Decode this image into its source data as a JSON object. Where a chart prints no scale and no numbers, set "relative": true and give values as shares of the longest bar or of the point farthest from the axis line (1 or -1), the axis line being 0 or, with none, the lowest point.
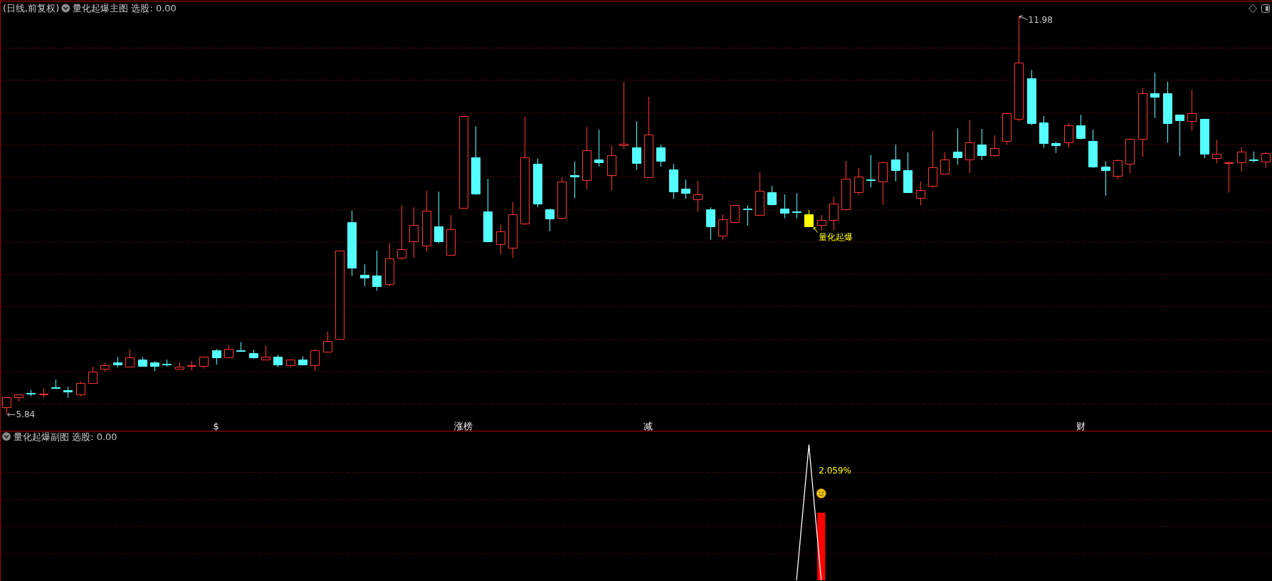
{
  "chart_data": [
    {
      "type": "candlestick",
      "title": "(日线,前复权)",
      "subtitle": "量化起爆主图 选股: 0.00",
      "categories": [
        null,
        null,
        null,
        null,
        null,
        null,
        null,
        null,
        null,
        null,
        null,
        null,
        null,
        null,
        null,
        null,
        null,
        "$",
        null,
        null,
        null,
        null,
        null,
        null,
        null,
        null,
        null,
        null,
        null,
        null,
        null,
        null,
        null,
        null,
        null,
        null,
        null,
        "涨榜",
        null,
        null,
        null,
        null,
        null,
        null,
        null,
        null,
        null,
        null,
        null,
        null,
        null,
        null,
        "减",
        null,
        null,
        null,
        null,
        null,
        null,
        null,
        null,
        null,
        null,
        null,
        null,
        null,
        null,
        null,
        null,
        null,
        null,
        null,
        null,
        null,
        null,
        null,
        null,
        null,
        null,
        null,
        null,
        null,
        null,
        null,
        null,
        null,
        null,
        "财",
        null,
        null,
        null,
        null,
        null,
        null,
        null,
        null,
        null,
        null,
        null,
        null,
        null,
        null,
        null
      ],
      "ohlc": [
        [
          5.94,
          6.1,
          5.84,
          6.1
        ],
        [
          6.1,
          6.14,
          6.03,
          6.14
        ],
        [
          6.16,
          6.21,
          6.11,
          6.15
        ],
        [
          6.15,
          6.23,
          6.09,
          6.15
        ],
        [
          6.25,
          6.37,
          6.23,
          6.24
        ],
        [
          6.21,
          6.26,
          6.09,
          6.18
        ],
        [
          6.14,
          6.34,
          6.11,
          6.32
        ],
        [
          6.32,
          6.57,
          6.32,
          6.49
        ],
        [
          6.54,
          6.63,
          6.49,
          6.59
        ],
        [
          6.63,
          6.72,
          6.56,
          6.6
        ],
        [
          6.57,
          6.84,
          6.56,
          6.71
        ],
        [
          6.68,
          6.72,
          6.58,
          6.58
        ],
        [
          6.64,
          6.65,
          6.5,
          6.58
        ],
        [
          6.61,
          6.68,
          6.57,
          6.6
        ],
        [
          6.54,
          6.63,
          6.53,
          6.57
        ],
        [
          6.59,
          6.66,
          6.51,
          6.59
        ],
        [
          6.58,
          6.72,
          6.54,
          6.72
        ],
        [
          6.82,
          6.84,
          6.6,
          6.71
        ],
        [
          6.71,
          6.9,
          6.71,
          6.84
        ],
        [
          6.82,
          6.95,
          6.8,
          6.81
        ],
        [
          6.78,
          6.83,
          6.69,
          6.71
        ],
        [
          6.68,
          6.9,
          6.68,
          6.72
        ],
        [
          6.72,
          6.75,
          6.56,
          6.6
        ],
        [
          6.59,
          6.68,
          6.56,
          6.68
        ],
        [
          6.68,
          6.73,
          6.59,
          6.6
        ],
        [
          6.59,
          6.84,
          6.51,
          6.82
        ],
        [
          6.8,
          7.11,
          6.8,
          6.97
        ],
        [
          7.0,
          8.36,
          7.0,
          8.36
        ],
        [
          8.8,
          8.98,
          7.97,
          8.1
        ],
        [
          7.99,
          8.15,
          7.81,
          7.94
        ],
        [
          7.98,
          8.36,
          7.74,
          7.81
        ],
        [
          7.84,
          8.48,
          7.81,
          8.24
        ],
        [
          8.25,
          9.06,
          8.22,
          8.38
        ],
        [
          8.5,
          9.03,
          8.25,
          8.76
        ],
        [
          8.44,
          9.29,
          8.35,
          8.98
        ],
        [
          8.74,
          9.27,
          8.48,
          8.5
        ],
        [
          8.29,
          8.91,
          8.29,
          8.69
        ],
        [
          9.02,
          10.44,
          9.02,
          10.44
        ],
        [
          9.8,
          10.28,
          9.22,
          9.24
        ],
        [
          8.97,
          9.47,
          8.49,
          8.5
        ],
        [
          8.46,
          8.76,
          8.3,
          8.66
        ],
        [
          8.41,
          9.11,
          8.25,
          8.92
        ],
        [
          8.78,
          10.43,
          8.76,
          9.8
        ],
        [
          9.7,
          9.78,
          9.03,
          9.09
        ],
        [
          9.0,
          9.01,
          8.66,
          8.86
        ],
        [
          8.87,
          9.49,
          8.84,
          9.43
        ],
        [
          9.53,
          9.74,
          9.17,
          9.5
        ],
        [
          9.45,
          10.27,
          9.31,
          9.91
        ],
        [
          9.77,
          10.23,
          9.66,
          9.72
        ],
        [
          9.53,
          9.98,
          9.29,
          9.84
        ],
        [
          9.99,
          10.97,
          9.93,
          10.01
        ],
        [
          9.96,
          10.36,
          9.61,
          9.71
        ],
        [
          9.49,
          10.74,
          9.49,
          10.15
        ],
        [
          9.96,
          10.0,
          9.66,
          9.75
        ],
        [
          9.61,
          9.7,
          9.16,
          9.27
        ],
        [
          9.32,
          9.46,
          9.16,
          9.25
        ],
        [
          9.15,
          9.44,
          8.96,
          9.23
        ],
        [
          9.0,
          9.03,
          8.53,
          8.74
        ],
        [
          8.59,
          8.92,
          8.53,
          8.84
        ],
        [
          8.8,
          9.07,
          8.8,
          9.07
        ],
        [
          9.01,
          9.06,
          8.75,
          9.0
        ],
        [
          8.91,
          9.57,
          8.91,
          9.28
        ],
        [
          9.26,
          9.36,
          9.06,
          9.08
        ],
        [
          9.01,
          9.23,
          8.86,
          8.94
        ],
        [
          8.97,
          9.25,
          8.86,
          8.96
        ],
        [
          8.92,
          8.99,
          8.74,
          8.74
        ],
        [
          8.76,
          8.91,
          8.67,
          8.83
        ],
        [
          8.83,
          9.19,
          8.67,
          9.09
        ],
        [
          9.0,
          9.75,
          8.98,
          9.47
        ],
        [
          9.26,
          9.64,
          9.22,
          9.51
        ],
        [
          9.46,
          9.84,
          9.34,
          9.45
        ],
        [
          9.43,
          9.73,
          9.07,
          9.72
        ],
        [
          9.77,
          10.0,
          9.43,
          9.6
        ],
        [
          9.6,
          9.88,
          9.25,
          9.26
        ],
        [
          9.18,
          9.43,
          9.06,
          9.3
        ],
        [
          9.36,
          10.21,
          9.33,
          9.65
        ],
        [
          9.55,
          9.88,
          9.55,
          9.77
        ],
        [
          9.89,
          10.25,
          9.69,
          9.8
        ],
        [
          9.77,
          10.38,
          9.56,
          10.03
        ],
        [
          10.0,
          10.24,
          9.76,
          9.83
        ],
        [
          9.84,
          10.14,
          9.81,
          9.95
        ],
        [
          10.05,
          10.49,
          10.0,
          10.48
        ],
        [
          10.4,
          11.98,
          10.36,
          11.26
        ],
        [
          11.02,
          11.15,
          10.3,
          10.33
        ],
        [
          10.34,
          10.44,
          9.95,
          10.02
        ],
        [
          10.02,
          10.04,
          9.87,
          9.99
        ],
        [
          10.03,
          10.33,
          9.95,
          10.3
        ],
        [
          10.3,
          10.46,
          10.08,
          10.1
        ],
        [
          10.05,
          10.23,
          9.64,
          9.66
        ],
        [
          9.66,
          9.74,
          9.21,
          9.6
        ],
        [
          9.52,
          9.77,
          9.46,
          9.76
        ],
        [
          9.7,
          10.09,
          9.56,
          10.09
        ],
        [
          10.09,
          10.87,
          9.81,
          10.79
        ],
        [
          10.79,
          11.11,
          10.41,
          10.74
        ],
        [
          10.79,
          10.97,
          10.03,
          10.33
        ],
        [
          10.46,
          10.46,
          9.82,
          10.37
        ],
        [
          10.36,
          10.85,
          10.21,
          10.48
        ],
        [
          10.4,
          10.4,
          9.79,
          9.86
        ],
        [
          9.79,
          10.07,
          9.71,
          9.86
        ],
        [
          9.73,
          9.74,
          9.26,
          9.73
        ],
        [
          9.72,
          9.96,
          9.58,
          9.89
        ],
        [
          9.77,
          9.89,
          9.72,
          9.76
        ],
        [
          9.74,
          9.88,
          9.64,
          9.87
        ]
      ],
      "colors": [
        "#ff3333",
        "#ff3333",
        "#54ffff",
        "#ff3333",
        "#54ffff",
        "#54ffff",
        "#ff3333",
        "#ff3333",
        "#ff3333",
        "#54ffff",
        "#ff3333",
        "#54ffff",
        "#54ffff",
        "#54ffff",
        "#ff3333",
        "#ff3333",
        "#ff3333",
        "#54ffff",
        "#ff3333",
        "#54ffff",
        "#54ffff",
        "#ff3333",
        "#54ffff",
        "#ff3333",
        "#54ffff",
        "#ff3333",
        "#ff3333",
        "#ff3333",
        "#54ffff",
        "#54ffff",
        "#54ffff",
        "#ff3333",
        "#ff3333",
        "#ff3333",
        "#ff3333",
        "#54ffff",
        "#ff3333",
        "#ff3333",
        "#54ffff",
        "#54ffff",
        "#ff3333",
        "#ff3333",
        "#ff3333",
        "#54ffff",
        "#54ffff",
        "#ff3333",
        "#54ffff",
        "#ff3333",
        "#54ffff",
        "#ff3333",
        "#ff3333",
        "#54ffff",
        "#ff3333",
        "#54ffff",
        "#54ffff",
        "#54ffff",
        "#ff3333",
        "#54ffff",
        "#ff3333",
        "#ff3333",
        "#54ffff",
        "#ff3333",
        "#54ffff",
        "#54ffff",
        "#54ffff",
        "#ffff00",
        "#ff3333",
        "#ff3333",
        "#ff3333",
        "#ff3333",
        "#54ffff",
        "#ff3333",
        "#54ffff",
        "#54ffff",
        "#ff3333",
        "#ff3333",
        "#ff3333",
        "#54ffff",
        "#ff3333",
        "#54ffff",
        "#ff3333",
        "#ff3333",
        "#ff3333",
        "#54ffff",
        "#54ffff",
        "#54ffff",
        "#ff3333",
        "#54ffff",
        "#54ffff",
        "#54ffff",
        "#ff3333",
        "#ff3333",
        "#ff3333",
        "#54ffff",
        "#54ffff",
        "#54ffff",
        "#ff3333",
        "#54ffff",
        "#ff3333",
        "#ff3333",
        "#ff3333",
        "#54ffff",
        "#ff3333"
      ],
      "value_labels": [
        "5.84",
        null,
        null,
        null,
        null,
        null,
        null,
        null,
        null,
        null,
        null,
        null,
        null,
        null,
        null,
        null,
        null,
        null,
        null,
        null,
        null,
        null,
        null,
        null,
        null,
        null,
        null,
        null,
        null,
        null,
        null,
        null,
        null,
        null,
        null,
        null,
        null,
        null,
        null,
        null,
        null,
        null,
        null,
        null,
        null,
        null,
        null,
        null,
        null,
        null,
        null,
        null,
        null,
        null,
        null,
        null,
        null,
        null,
        null,
        null,
        null,
        null,
        null,
        null,
        null,
        "量化起爆",
        null,
        null,
        null,
        null,
        null,
        null,
        null,
        null,
        null,
        null,
        null,
        null,
        null,
        null,
        null,
        null,
        "11.98",
        null,
        null,
        null,
        null,
        null,
        null,
        null,
        null,
        null,
        null,
        null,
        null,
        null,
        null,
        null,
        null,
        null,
        null,
        null,
        null
      ],
      "ylim": [
        5.59,
        12.21
      ],
      "yticks": [
        {
          "value": 6,
          "label": null
        },
        {
          "value": 6.5,
          "label": null
        },
        {
          "value": 7,
          "label": null
        },
        {
          "value": 7.5,
          "label": null
        },
        {
          "value": 8,
          "label": null
        },
        {
          "value": 8.5,
          "label": null
        },
        {
          "value": 9,
          "label": null
        },
        {
          "value": 9.5,
          "label": null
        },
        {
          "value": 10,
          "label": null
        },
        {
          "value": 10.5,
          "label": null
        },
        {
          "value": 11,
          "label": null
        },
        {
          "value": 11.5,
          "label": null
        }
      ],
      "tick_labels": "x",
      "grid": "y"
    },
    {
      "type": "line",
      "title": "量化起爆副图 选股: 0.00",
      "categories": [
        null,
        null,
        null,
        null,
        null,
        null,
        null,
        null,
        null,
        null,
        null,
        null,
        null,
        null,
        null,
        null,
        null,
        null,
        null,
        null,
        null,
        null,
        null,
        null,
        null,
        null,
        null,
        null,
        null,
        null,
        null,
        null,
        null,
        null,
        null,
        null,
        null,
        null,
        null,
        null,
        null,
        null,
        null,
        null,
        null,
        null,
        null,
        null,
        null,
        null,
        null,
        null,
        null,
        null,
        null,
        null,
        null,
        null,
        null,
        null,
        null,
        null,
        null,
        null,
        null,
        null,
        null,
        null,
        null,
        null,
        null,
        null,
        null,
        null,
        null,
        null,
        null,
        null,
        null,
        null,
        null,
        null,
        null,
        null,
        null,
        null,
        null,
        null,
        null,
        null,
        null,
        null,
        null,
        null,
        null,
        null,
        null,
        null,
        null,
        null,
        null,
        null,
        null
      ],
      "relative": true,
      "tick_labels": false,
      "ref_lines": [
        {
          "axis": "y",
          "value": 0.2,
          "color": "#a00000",
          "line_style": "dotted"
        },
        {
          "axis": "y",
          "value": 0.4,
          "color": "#a00000",
          "line_style": "dotted"
        },
        {
          "axis": "y",
          "value": 0.6,
          "color": "#a00000",
          "line_style": "dotted"
        },
        {
          "axis": "y",
          "value": 0.8,
          "color": "#a00000",
          "line_style": "dotted"
        }
      ],
      "series": [
        {
          "type": "bar",
          "color": "#ff0000",
          "values": [
            null,
            null,
            null,
            null,
            null,
            null,
            null,
            null,
            null,
            null,
            null,
            null,
            null,
            null,
            null,
            null,
            null,
            null,
            null,
            null,
            null,
            null,
            null,
            null,
            null,
            null,
            null,
            null,
            null,
            null,
            null,
            null,
            null,
            null,
            null,
            null,
            null,
            null,
            null,
            null,
            null,
            null,
            null,
            null,
            null,
            null,
            null,
            null,
            null,
            null,
            null,
            null,
            null,
            null,
            null,
            null,
            null,
            null,
            null,
            null,
            null,
            null,
            null,
            null,
            null,
            null,
            0.5,
            null,
            null,
            null,
            null,
            null,
            null,
            null,
            null,
            null,
            null,
            null,
            null,
            null,
            null,
            null,
            null,
            null,
            null,
            null,
            null,
            null,
            null,
            null,
            null,
            null,
            null,
            null,
            null,
            null,
            null,
            null,
            null,
            null,
            null,
            null,
            null
          ]
        },
        {
          "type": "line",
          "color": "#ffffff",
          "values": [
            null,
            null,
            null,
            null,
            null,
            null,
            null,
            null,
            null,
            null,
            null,
            null,
            null,
            null,
            null,
            null,
            null,
            null,
            null,
            null,
            null,
            null,
            null,
            null,
            null,
            null,
            null,
            null,
            null,
            null,
            null,
            null,
            null,
            null,
            null,
            null,
            null,
            null,
            null,
            null,
            null,
            null,
            null,
            null,
            null,
            null,
            null,
            null,
            null,
            null,
            null,
            null,
            null,
            null,
            null,
            null,
            null,
            null,
            null,
            null,
            null,
            null,
            null,
            null,
            0,
            1,
            0,
            null,
            null,
            null,
            null,
            null,
            null,
            null,
            null,
            null,
            null,
            null,
            null,
            null,
            null,
            null,
            null,
            null,
            null,
            null,
            null,
            null,
            null,
            null,
            null,
            null,
            null,
            null,
            null,
            null,
            null,
            null,
            null,
            null,
            null,
            null,
            null
          ]
        }
      ]
    },
    {
      "type": "other",
      "annotations": [
        "2.059%"
      ]
    }
  ]
}
